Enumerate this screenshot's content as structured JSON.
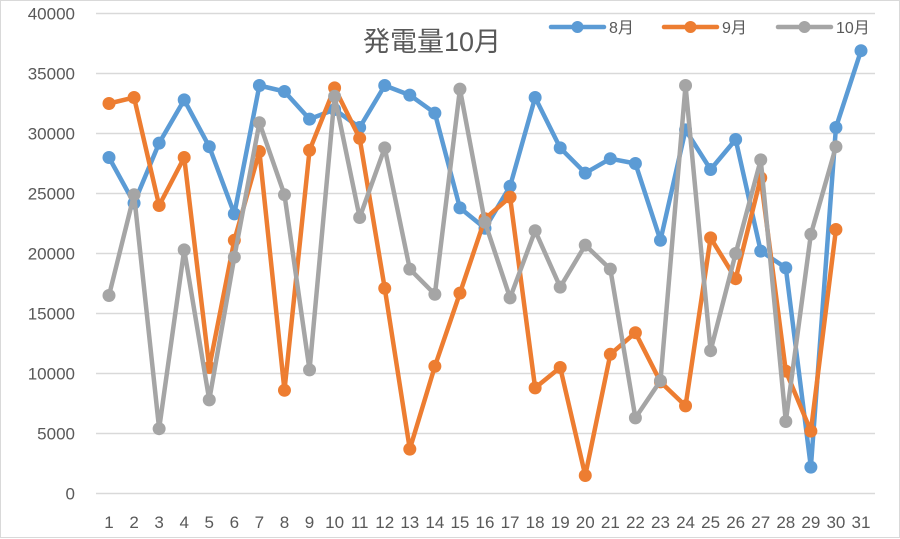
{
  "chart_data": {
    "type": "line",
    "title": "発電量10月",
    "xlabel": "",
    "ylabel": "",
    "ylim": [
      0,
      40000
    ],
    "yticks": [
      0,
      5000,
      10000,
      15000,
      20000,
      25000,
      30000,
      35000,
      40000
    ],
    "grid": true,
    "legend_position": "top-right",
    "categories": [
      "1",
      "2",
      "3",
      "4",
      "5",
      "6",
      "7",
      "8",
      "9",
      "10",
      "11",
      "12",
      "13",
      "14",
      "15",
      "16",
      "17",
      "18",
      "19",
      "20",
      "21",
      "22",
      "23",
      "24",
      "25",
      "26",
      "27",
      "28",
      "29",
      "30",
      "31"
    ],
    "series": [
      {
        "name": "8月",
        "color": "#5b9bd5",
        "values": [
          28000,
          24200,
          29200,
          32800,
          28900,
          23300,
          34000,
          33500,
          31200,
          32000,
          30500,
          34000,
          33200,
          31700,
          23800,
          22100,
          25600,
          33000,
          28800,
          26700,
          27900,
          27500,
          21100,
          30300,
          27000,
          29500,
          20200,
          18800,
          2200,
          30500,
          36900
        ]
      },
      {
        "name": "9月",
        "color": "#ed7d31",
        "values": [
          32500,
          33000,
          24000,
          28000,
          10500,
          21100,
          28500,
          8600,
          28600,
          33800,
          29600,
          17100,
          3700,
          10600,
          16700,
          22900,
          24700,
          8800,
          10500,
          1500,
          11600,
          13400,
          9300,
          7300,
          21300,
          17900,
          26300,
          10200,
          5200,
          22000
        ]
      },
      {
        "name": "10月",
        "color": "#a5a5a5",
        "values": [
          16500,
          24900,
          5400,
          20300,
          7800,
          19700,
          30900,
          24900,
          10300,
          33100,
          23000,
          28800,
          18700,
          16600,
          33700,
          22600,
          16300,
          21900,
          17200,
          20700,
          18700,
          6300,
          9400,
          34000,
          11900,
          20000,
          27800,
          6000,
          21600,
          28900
        ]
      }
    ]
  },
  "colors": {
    "gridline": "#d9d9d9",
    "axis_text": "#595959",
    "border": "#d9d9d9"
  }
}
